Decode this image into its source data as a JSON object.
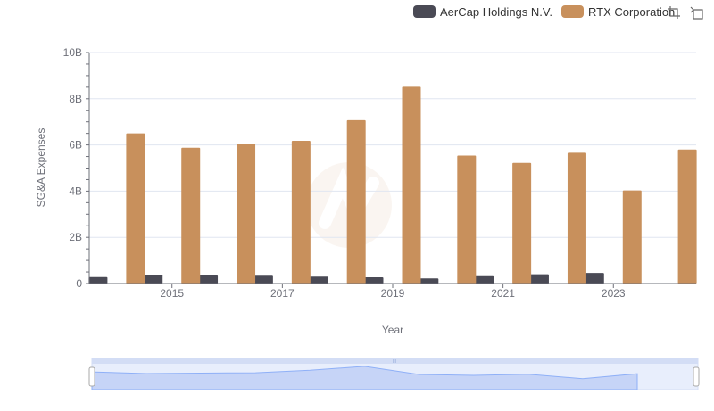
{
  "legend": {
    "items": [
      {
        "label": "AerCap Holdings N.V.",
        "color": "#4a4a55"
      },
      {
        "label": "RTX Corporation",
        "color": "#c8905c"
      }
    ]
  },
  "toolbox": {
    "icons": [
      "zoom-select-icon",
      "zoom-reset-icon"
    ]
  },
  "chart_data": {
    "type": "bar",
    "categories": [
      "2014",
      "2015",
      "2016",
      "2017",
      "2018",
      "2019",
      "2020",
      "2021",
      "2022",
      "2023",
      "2024"
    ],
    "x_tick_labels": [
      "2015",
      "2017",
      "2019",
      "2021",
      "2023"
    ],
    "series": [
      {
        "name": "AerCap Holdings N.V.",
        "color": "#4a4a55",
        "values": [
          0.28,
          0.38,
          0.35,
          0.34,
          0.3,
          0.27,
          0.22,
          0.32,
          0.4,
          0.46,
          0
        ]
      },
      {
        "name": "RTX Corporation",
        "color": "#c8905c",
        "values": [
          6.5,
          5.88,
          6.05,
          6.18,
          7.07,
          8.52,
          5.54,
          5.22,
          5.66,
          4.03,
          5.8
        ]
      }
    ],
    "ylim": [
      0,
      10
    ],
    "y_ticks": [
      0,
      2,
      4,
      6,
      8,
      10
    ],
    "y_tick_labels": [
      "0",
      "2B",
      "4B",
      "6B",
      "8B",
      "10B"
    ],
    "xlabel": "Year",
    "ylabel": "SG&A Expenses",
    "legend_position": "top-right",
    "grid": true,
    "slider": {
      "start": 0,
      "end": 1,
      "handle_label": "III"
    }
  }
}
